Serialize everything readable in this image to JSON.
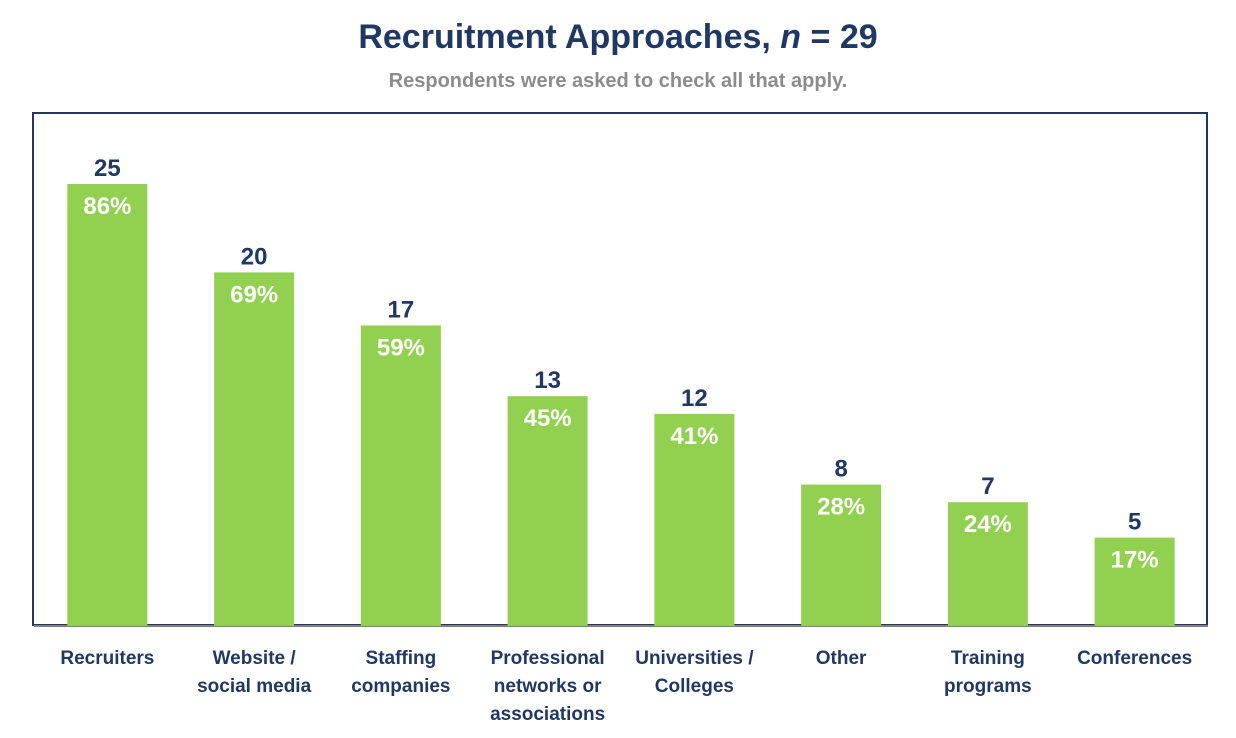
{
  "title": {
    "prefix": "Recruitment Approaches, ",
    "n_symbol": "n",
    "suffix": " = 29"
  },
  "subtitle": "Respondents were asked to check all that apply.",
  "colors": {
    "bar": "#92d050",
    "title": "#1f3864",
    "subtitle": "#8c8c8c",
    "frame": "#1f3864"
  },
  "chart_data": {
    "type": "bar",
    "title": "Recruitment Approaches, n = 29",
    "subtitle": "Respondents were asked to check all that apply.",
    "xlabel": "",
    "ylabel": "",
    "ylim": [
      0,
      29
    ],
    "grid": false,
    "categories": [
      "Recruiters",
      "Website / social media",
      "Staffing companies",
      "Professional networks or associations",
      "Universities / Colleges",
      "Other",
      "Training programs",
      "Conferences"
    ],
    "category_lines": [
      [
        "Recruiters"
      ],
      [
        "Website /",
        "social media"
      ],
      [
        "Staffing",
        "companies"
      ],
      [
        "Professional",
        "networks or",
        "associations"
      ],
      [
        "Universities /",
        "Colleges"
      ],
      [
        "Other"
      ],
      [
        "Training",
        "programs"
      ],
      [
        "Conferences"
      ]
    ],
    "values": [
      25,
      20,
      17,
      13,
      12,
      8,
      7,
      5
    ],
    "percent_labels": [
      "86%",
      "69%",
      "59%",
      "45%",
      "41%",
      "28%",
      "24%",
      "17%"
    ]
  }
}
